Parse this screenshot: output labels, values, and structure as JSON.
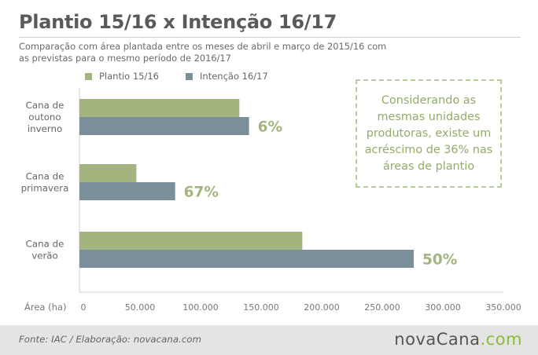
{
  "header": {
    "title": "Plantio 15/16 x Intenção 16/17",
    "subtitle": "Comparação com área plantada entre os meses de abril e março de 2015/16 com as previstas para o mesmo período de 2016/17"
  },
  "callout": {
    "text": "Considerando as mesmas unidades produtoras, existe um acréscimo de 36% nas áreas de plantio"
  },
  "footer": {
    "source": "Fonte: IAC / Elaboração: novacana.com",
    "logo_main": "novaCana",
    "logo_accent": ".com"
  },
  "colors": {
    "plantio": "#a3b47f",
    "intencao": "#7a8f99",
    "growth_label": "#a3b47f"
  },
  "chart_data": {
    "type": "bar",
    "orientation": "horizontal",
    "categories": [
      [
        "Cana de",
        "outono",
        "inverno"
      ],
      [
        "Cana de",
        "primavera"
      ],
      [
        "Cana de",
        "verão"
      ]
    ],
    "series": [
      {
        "name": "Plantio 15/16",
        "values": [
          132000,
          47000,
          184000
        ]
      },
      {
        "name": "Intenção 16/17",
        "values": [
          140000,
          79000,
          276000
        ]
      }
    ],
    "growth_labels": [
      "6%",
      "67%",
      "50%"
    ],
    "xlabel": "Área (ha)",
    "xlim": [
      0,
      350000
    ],
    "xticks": [
      0,
      50000,
      100000,
      150000,
      200000,
      250000,
      300000,
      350000
    ],
    "xtick_labels": [
      "0",
      "50.000",
      "100.000",
      "150.000",
      "200.000",
      "250.000",
      "300.000",
      "350.000"
    ],
    "legend_position": "top",
    "grid": false
  }
}
